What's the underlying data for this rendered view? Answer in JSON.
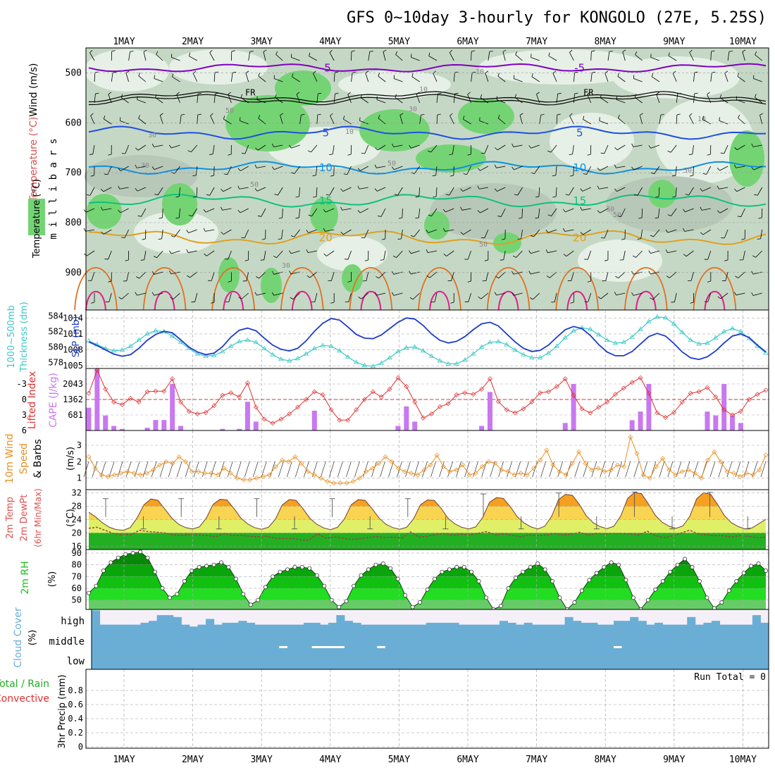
{
  "header": {
    "title": "GFS 0~10day 3-hourly for KONGOLO (27E, 5.25S)"
  },
  "colors": {
    "rh_light": "#e6f0e6",
    "rh_mid": "#c5d8c5",
    "rh_dark": "#b8c8b8",
    "rh_moist": "#74d474",
    "slp": "#1e3cc8",
    "thickness": "#3cc8c8",
    "lifted_index": "#e03030",
    "cape": "#c878f0",
    "wind": "#e89020",
    "dewpoint": "#a04040",
    "rh2m": "#20c020",
    "cloud": "#6aaed6",
    "cloud_bg": "#f5f0f8",
    "precip_total": "#22aa22",
    "precip_conv": "#e03030",
    "iso_minus5": "#8000c0",
    "iso_5": "#2050e0",
    "iso_10": "#1090e0",
    "iso_15": "#10c080",
    "iso_20": "#e0a020",
    "iso_25": "#e07020",
    "iso_30": "#e0208a"
  },
  "chart_data": [
    {
      "type": "contour",
      "id": "upper-air",
      "title": "Wind (m/s) / Temperature (°C) / RH (%)",
      "ylabel": "millibars",
      "y_ticks": [
        500,
        600,
        700,
        800,
        900
      ],
      "ylim": [
        975,
        450
      ],
      "x_day_labels": [
        "1MAY",
        "2MAY",
        "3MAY",
        "4MAY",
        "5MAY",
        "6MAY",
        "7MAY",
        "8MAY",
        "9MAY",
        "10MAY"
      ],
      "isotherms": [
        {
          "label": "-5",
          "base": 490,
          "amp": 6,
          "color": "iso_minus5"
        },
        {
          "label": "FR",
          "base": 548,
          "amp": 7,
          "color": "black",
          "double": true
        },
        {
          "label": "5",
          "base": 620,
          "amp": 8,
          "color": "iso_5"
        },
        {
          "label": "10",
          "base": 690,
          "amp": 8,
          "color": "iso_10"
        },
        {
          "label": "15",
          "base": 756,
          "amp": 9,
          "color": "iso_15"
        },
        {
          "label": "20",
          "base": 830,
          "amp": 10,
          "color": "iso_20"
        }
      ],
      "rh_labels": [
        "30",
        "50",
        "10",
        "50",
        "30",
        "10",
        "30",
        "50",
        "10",
        "30",
        "50",
        "30",
        "10",
        "30",
        "50"
      ],
      "fr_labels": [
        "FR",
        "FR"
      ]
    },
    {
      "type": "line",
      "id": "slp-thickness",
      "left_label": "1000~500mb Thickness (dm)",
      "right_label": "SLP (mb)",
      "left_ticks": [
        578,
        580,
        582,
        584
      ],
      "right_ticks": [
        1005,
        1008,
        1011,
        1014
      ],
      "series": [
        {
          "name": "SLP",
          "values": [
            1009.5,
            1008.8,
            1008.0,
            1007.2,
            1006.8,
            1007.1,
            1008.3,
            1009.8,
            1010.9,
            1011.5,
            1011.2,
            1009.9,
            1008.5,
            1007.6,
            1007.1,
            1007.4,
            1008.6,
            1010.4,
            1011.7,
            1012.1,
            1011.6,
            1010.2,
            1008.9,
            1008.1,
            1007.8,
            1008.3,
            1009.7,
            1011.5,
            1013.0,
            1013.9,
            1013.6,
            1012.3,
            1010.9,
            1010.2,
            1010.1,
            1010.8,
            1012.0,
            1013.2,
            1014.0,
            1013.8,
            1012.6,
            1011.0,
            1009.8,
            1009.3,
            1009.6,
            1010.5,
            1011.8,
            1012.9,
            1013.2,
            1012.5,
            1011.0,
            1009.5,
            1008.3,
            1007.7,
            1007.9,
            1008.9,
            1010.4,
            1011.8,
            1012.4,
            1012.0,
            1010.7,
            1009.0,
            1007.6,
            1006.9,
            1006.9,
            1007.7,
            1009.1,
            1010.5,
            1011.1,
            1010.6,
            1009.2,
            1007.6,
            1006.5,
            1006.2,
            1006.7,
            1007.8,
            1009.3,
            1010.6,
            1011.0,
            1010.3,
            1008.9,
            1007.6
          ]
        },
        {
          "name": "Thickness",
          "values": [
            580.8,
            580.3,
            579.8,
            579.5,
            579.6,
            580.1,
            580.9,
            581.7,
            582.1,
            582.0,
            581.4,
            580.6,
            579.8,
            579.1,
            578.8,
            578.9,
            579.4,
            580.1,
            580.7,
            580.9,
            580.6,
            579.8,
            579.0,
            578.4,
            578.2,
            578.5,
            579.1,
            579.8,
            580.2,
            580.1,
            579.5,
            578.7,
            578.0,
            577.6,
            577.5,
            577.9,
            578.6,
            579.4,
            579.9,
            580.0,
            579.5,
            578.8,
            578.2,
            577.8,
            577.8,
            578.3,
            579.1,
            580.0,
            580.6,
            580.7,
            580.3,
            579.6,
            579.0,
            578.6,
            578.6,
            579.2,
            580.1,
            581.2,
            582.1,
            582.5,
            582.3,
            581.6,
            580.9,
            580.5,
            580.6,
            581.3,
            582.3,
            583.3,
            583.9,
            583.8,
            583.0,
            581.9,
            580.9,
            580.4,
            580.5,
            581.2,
            582.0,
            582.4,
            582.0,
            581.1,
            580.1,
            579.2
          ]
        }
      ]
    },
    {
      "type": "bar+line",
      "id": "cape-li",
      "left_label": "Lifted Index",
      "right_label": "CAPE (J/kg)",
      "left_ticks": [
        "-3",
        "0",
        "3",
        "6"
      ],
      "left_tick_values": [
        -3,
        0,
        3,
        6
      ],
      "right_ticks": [
        "681",
        "1362",
        "2043"
      ],
      "right_tick_values": [
        681,
        1362,
        2043
      ],
      "li_range": [
        -6,
        6
      ],
      "cape_range": [
        0,
        2724
      ],
      "cape_values": [
        1000,
        2700,
        660,
        200,
        70,
        0,
        0,
        120,
        460,
        460,
        2043,
        200,
        0,
        0,
        0,
        0,
        70,
        0,
        70,
        1260,
        390,
        0,
        0,
        0,
        0,
        0,
        0,
        870,
        0,
        0,
        0,
        0,
        0,
        0,
        0,
        0,
        0,
        200,
        1060,
        390,
        0,
        0,
        0,
        0,
        0,
        0,
        0,
        200,
        1690,
        0,
        0,
        0,
        0,
        0,
        0,
        0,
        0,
        330,
        2043,
        0,
        0,
        0,
        0,
        0,
        0,
        450,
        830,
        2043,
        0,
        0,
        0,
        0,
        0,
        0,
        830,
        660,
        2043,
        660,
        330,
        0,
        0,
        0
      ],
      "li_values": [
        -1.2,
        -5.7,
        -2.0,
        0.5,
        1.0,
        -0.2,
        0.5,
        -1.5,
        -1.6,
        -1.6,
        -4.0,
        0.5,
        2.3,
        2.8,
        2.5,
        1.2,
        -0.8,
        -1.3,
        -0.5,
        -3.2,
        1.5,
        3.8,
        4.6,
        3.8,
        2.8,
        1.5,
        0.0,
        -1.5,
        -0.9,
        2.0,
        4.0,
        4.0,
        2.0,
        0.0,
        -1.5,
        -0.5,
        -2.0,
        -4.2,
        -2.5,
        0.5,
        3.6,
        2.8,
        1.4,
        0.8,
        -0.9,
        -1.3,
        -1.0,
        -2.0,
        -4.0,
        0.4,
        2.0,
        2.6,
        1.8,
        0.5,
        -1.3,
        -1.5,
        -2.5,
        -4.0,
        -0.8,
        1.8,
        2.6,
        1.5,
        0.5,
        -1.0,
        -2.2,
        -3.3,
        -4.2,
        -1.2,
        2.6,
        3.5,
        2.5,
        0.5,
        -1.2,
        -1.5,
        -2.3,
        -0.5,
        2.0,
        3.0,
        2.3,
        0.0,
        -1.0,
        -1.8
      ]
    },
    {
      "type": "line",
      "id": "wind10m",
      "left_label": "10m Wind Speed & Barbs",
      "units": "(m/s)",
      "y_ticks": [
        1,
        2,
        3
      ],
      "ylim": [
        0.3,
        3.9
      ],
      "values": [
        2.3,
        1.6,
        1.2,
        1.1,
        1.2,
        1.3,
        1.4,
        1.3,
        1.2,
        1.3,
        1.5,
        1.8,
        2.0,
        1.9,
        2.3,
        2.0,
        1.4,
        1.4,
        1.3,
        1.3,
        1.2,
        1.6,
        1.3,
        1.0,
        0.9,
        0.9,
        1.0,
        1.1,
        1.2,
        1.7,
        2.1,
        2.0,
        2.3,
        1.9,
        1.4,
        1.2,
        1.0,
        0.8,
        0.7,
        0.7,
        0.7,
        0.8,
        1.0,
        1.4,
        1.6,
        1.9,
        2.3,
        2.0,
        1.6,
        1.4,
        1.3,
        1.2,
        1.5,
        1.8,
        2.4,
        1.7,
        1.4,
        1.5,
        1.8,
        1.2,
        1.3,
        1.7,
        2.0,
        1.9,
        1.5,
        1.4,
        1.2,
        1.3,
        1.2,
        1.6,
        2.1,
        2.7,
        1.8,
        1.4,
        1.2,
        1.9,
        2.6,
        1.9,
        1.5,
        1.6,
        1.4,
        1.5,
        1.8,
        1.7,
        3.5,
        2.5,
        1.2,
        1.0,
        1.7,
        2.2,
        1.5,
        1.2,
        1.4,
        1.5,
        1.3,
        1.0,
        2.1,
        2.6,
        2.0,
        1.4,
        1.3,
        1.1,
        1.3,
        1.2,
        1.5,
        2.4
      ]
    },
    {
      "type": "area",
      "id": "temp2m",
      "left_label": "2m Temp 2m DewPt (6hr Min/Max)",
      "units": "(°C)",
      "y_ticks": [
        16,
        20,
        24,
        28,
        32
      ],
      "ylim": [
        15,
        33
      ],
      "temp_values": [
        26.2,
        24.8,
        23.0,
        21.7,
        21.0,
        20.8,
        21.6,
        24.5,
        28.5,
        30.2,
        29.8,
        27.2,
        24.5,
        22.6,
        21.6,
        21.2,
        21.8,
        24.4,
        28.6,
        30.1,
        29.9,
        27.4,
        24.5,
        22.7,
        21.6,
        21.1,
        21.7,
        24.1,
        28.4,
        30.0,
        29.8,
        27.3,
        24.4,
        22.6,
        21.5,
        21.0,
        21.7,
        24.2,
        28.5,
        30.0,
        29.8,
        27.3,
        24.5,
        22.6,
        21.6,
        21.1,
        21.7,
        24.2,
        28.4,
        29.9,
        29.8,
        27.4,
        24.4,
        22.7,
        21.7,
        21.2,
        21.8,
        24.6,
        29.2,
        30.6,
        30.4,
        27.9,
        24.9,
        23.0,
        21.8,
        21.2,
        22.0,
        25.0,
        30.0,
        31.6,
        31.3,
        28.6,
        25.2,
        23.1,
        21.9,
        21.3,
        22.0,
        25.1,
        30.4,
        32.2,
        31.8,
        28.7,
        25.3,
        23.2,
        22.0,
        21.4,
        22.1,
        25.0,
        30.3,
        32.1,
        31.6,
        28.6,
        25.2,
        23.1,
        21.9,
        21.2,
        21.5,
        22.8,
        24.1
      ],
      "dew_values": [
        21.4,
        21.7,
        20.7,
        19.8,
        19.4,
        19.5,
        20.8,
        20.4,
        20.2,
        20.0,
        19.4,
        19.3,
        19.5,
        19.4,
        19.2,
        18.9,
        19.8,
        19.2,
        19.3,
        19.0,
        18.8,
        19.0,
        18.4,
        18.3,
        18.4,
        17.9,
        17.8,
        19.8,
        18.4,
        18.8,
        18.4,
        18.0,
        18.3,
        18.6,
        18.9,
        18.6,
        18.7,
        18.5,
        20.3,
        18.7,
        19.0,
        19.5,
        19.8,
        19.3,
        19.6,
        19.4,
        19.9,
        20.4,
        19.4,
        19.7,
        19.3,
        18.8,
        19.4,
        19.2,
        19.4,
        19.8,
        19.5,
        19.6,
        20.2,
        19.3,
        19.9,
        19.7,
        19.8,
        19.8,
        19.7,
        19.4,
        20.5,
        19.1,
        18.6,
        19.1,
        20.0,
        20.8,
        19.7,
        19.4,
        19.2,
        19.1,
        18.8,
        19.2,
        18.9,
        18.6,
        18.7
      ],
      "min_max_bars": [
        [
          30.3,
          24.8
        ],
        [
          21.2,
          25.0
        ],
        [
          30.3,
          24.8
        ],
        [
          21.2,
          25.0
        ],
        [
          30.3,
          24.8
        ],
        [
          21.2,
          25.0
        ],
        [
          30.3,
          24.8
        ],
        [
          21.2,
          25.0
        ],
        [
          30.3,
          24.8
        ],
        [
          21.2,
          25.0
        ],
        [
          31.7,
          24.8
        ],
        [
          21.2,
          25.0
        ],
        [
          32.0,
          24.8
        ],
        [
          21.2,
          25.0
        ],
        [
          32.3,
          24.8
        ],
        [
          21.2,
          25.0
        ],
        [
          32.2,
          24.8
        ],
        [
          21.2,
          25.0
        ]
      ]
    },
    {
      "type": "area",
      "id": "rh2m",
      "left_label": "2m RH",
      "units": "(%)",
      "y_ticks": [
        50,
        60,
        70,
        80,
        90
      ],
      "ylim": [
        42,
        93
      ],
      "values": [
        56,
        62,
        75,
        82,
        86,
        89,
        90,
        91,
        86,
        74,
        60,
        52,
        55,
        66,
        75,
        78,
        79,
        80,
        82,
        78,
        68,
        55,
        46,
        50,
        61,
        70,
        74,
        76,
        78,
        78,
        77,
        71,
        62,
        50,
        44,
        49,
        62,
        71,
        76,
        80,
        81,
        77,
        68,
        54,
        44,
        48,
        59,
        68,
        74,
        76,
        78,
        78,
        74,
        66,
        52,
        42,
        45,
        60,
        69,
        74,
        78,
        81,
        76,
        66,
        52,
        42,
        48,
        58,
        67,
        73,
        78,
        82,
        80,
        67,
        52,
        42,
        50,
        59,
        66,
        74,
        80,
        85,
        78,
        66,
        52,
        43,
        48,
        58,
        66,
        73,
        79,
        81,
        75
      ],
      "bands": [
        50,
        60,
        70,
        80
      ]
    },
    {
      "type": "area",
      "id": "cloud-cover",
      "left_label": "Cloud Cover (%)",
      "levels": [
        "high",
        "middle",
        "low"
      ],
      "high_cover": [
        0.95,
        0.2,
        0.2,
        0.2,
        0.2,
        0.2,
        0.3,
        0.4,
        0.7,
        0.7,
        0.6,
        0.2,
        0.1,
        0.2,
        0.5,
        0.2,
        0.3,
        0.3,
        0.4,
        0.3,
        0.2,
        0.2,
        0.2,
        0.2,
        0.2,
        0.2,
        0.3,
        0.3,
        0.2,
        0.3,
        0.7,
        0.4,
        0.3,
        0.2,
        0.2,
        0.2,
        0.2,
        0.2,
        0.2,
        0.2,
        0.2,
        0.3,
        0.3,
        0.3,
        0.3,
        0.2,
        0.2,
        0.2,
        0.2,
        0.2,
        0.4,
        0.3,
        0.2,
        0.3,
        0.2,
        0.2,
        0.2,
        0.2,
        0.6,
        0.4,
        0.3,
        0.3,
        0.2,
        0.2,
        0.4,
        0.4,
        0.6,
        0.4,
        0.2,
        0.3,
        0.2,
        0.2,
        0.2,
        0.6,
        0.2,
        0.3,
        0.4,
        0.2,
        0.2,
        0.2,
        0.2,
        0.7,
        0.3
      ],
      "mid_gaps": [
        23,
        27,
        28,
        29,
        30,
        35,
        64
      ]
    },
    {
      "type": "bar",
      "id": "precip",
      "left_label": "Total / Rain Convective 3hr Precip (mm)",
      "total_label": "Total / Rain",
      "conv_label": "Convective",
      "units_label": "3hr Precip (mm)",
      "y_ticks": [
        "0",
        "0.2",
        "0.4",
        "0.6",
        "0.8"
      ],
      "ylim": [
        0,
        1
      ],
      "values": [],
      "run_total": "Run Total = 0"
    }
  ]
}
